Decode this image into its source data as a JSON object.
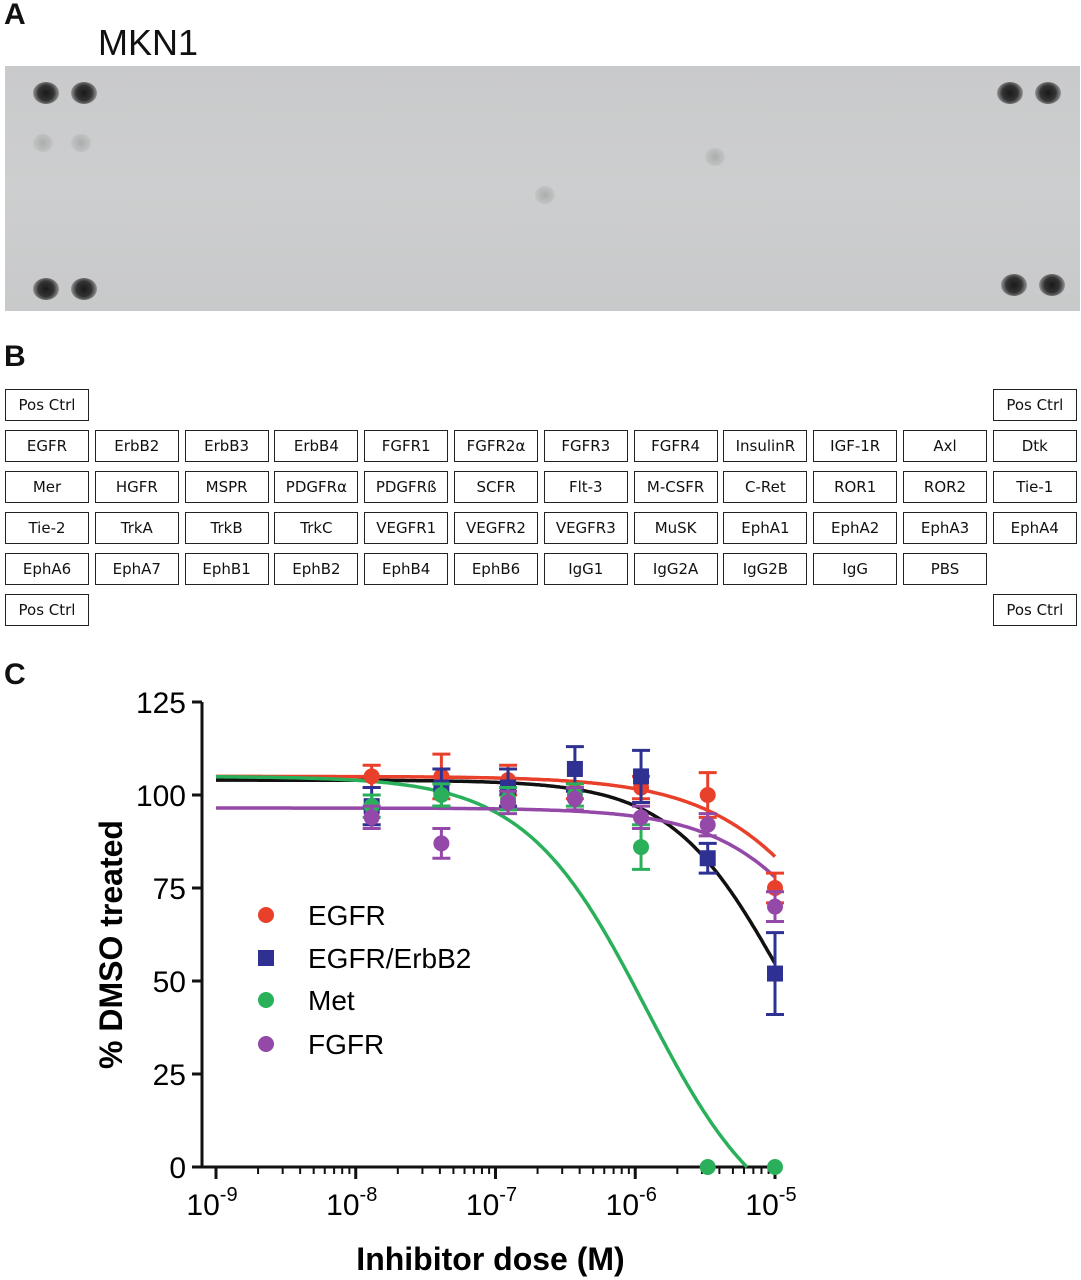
{
  "panels": {
    "a": {
      "letter": "A",
      "title": "MKN1"
    },
    "b": {
      "letter": "B"
    },
    "c": {
      "letter": "C"
    }
  },
  "array_layout": {
    "rows": [
      [
        "Pos Ctrl",
        "",
        "",
        "",
        "",
        "",
        "",
        "",
        "",
        "",
        "",
        "Pos Ctrl"
      ],
      [
        "EGFR",
        "ErbB2",
        "ErbB3",
        "ErbB4",
        "FGFR1",
        "FGFR2α",
        "FGFR3",
        "FGFR4",
        "InsulinR",
        "IGF-1R",
        "Axl",
        "Dtk"
      ],
      [
        "Mer",
        "HGFR",
        "MSPR",
        "PDGFRα",
        "PDGFRß",
        "SCFR",
        "Flt-3",
        "M-CSFR",
        "C-Ret",
        "ROR1",
        "ROR2",
        "Tie-1"
      ],
      [
        "Tie-2",
        "TrkA",
        "TrkB",
        "TrkC",
        "VEGFR1",
        "VEGFR2",
        "VEGFR3",
        "MuSK",
        "EphA1",
        "EphA2",
        "EphA3",
        "EphA4"
      ],
      [
        "EphA6",
        "EphA7",
        "EphB1",
        "EphB2",
        "EphB4",
        "EphB6",
        "IgG1",
        "IgG2A",
        "IgG2B",
        "IgG",
        "PBS",
        ""
      ],
      [
        "Pos Ctrl",
        "",
        "",
        "",
        "",
        "",
        "",
        "",
        "",
        "",
        "",
        "Pos Ctrl"
      ]
    ]
  },
  "chart_data": {
    "type": "scatter",
    "xlabel": "Inhibitor dose (M)",
    "ylabel": "% DMSO treated",
    "x_scale": "log",
    "xlim": [
      1e-09,
      1e-05
    ],
    "ylim": [
      0,
      125
    ],
    "x_ticks": [
      {
        "base": "10",
        "exp": "-9",
        "value": 1e-09
      },
      {
        "base": "10",
        "exp": "-8",
        "value": 1e-08
      },
      {
        "base": "10",
        "exp": "-7",
        "value": 1e-07
      },
      {
        "base": "10",
        "exp": "-6",
        "value": 1e-06
      },
      {
        "base": "10",
        "exp": "-5",
        "value": 1e-05
      }
    ],
    "y_ticks": [
      "0",
      "25",
      "50",
      "75",
      "100",
      "125"
    ],
    "legend_position": "lower-left",
    "series": [
      {
        "name": "EGFR",
        "color": "#e8402a",
        "marker": "circle",
        "x": [
          1.3e-08,
          4.1e-08,
          1.23e-07,
          3.7e-07,
          1.1e-06,
          3.3e-06,
          1e-05
        ],
        "y": [
          105,
          105,
          104,
          101,
          102,
          100,
          75
        ],
        "err": [
          3,
          6,
          4,
          2,
          3,
          6,
          4
        ],
        "fit": {
          "top": 105,
          "bottom": 0,
          "ic50": 4.5e-05,
          "hill": 0.9
        }
      },
      {
        "name": "EGFR/ErbB2",
        "color": "#2e3192",
        "marker": "square",
        "x": [
          1.3e-08,
          4.1e-08,
          1.23e-07,
          3.7e-07,
          1.1e-06,
          3.3e-06,
          1e-05
        ],
        "y": [
          97,
          102,
          102,
          107,
          105,
          83,
          52
        ],
        "err": [
          5,
          5,
          5,
          6,
          7,
          4,
          11
        ],
        "fit": {
          "top": 104,
          "bottom": 0,
          "ic50": 1.1e-05,
          "hill": 1.1
        }
      },
      {
        "name": "Met",
        "color": "#2ab05a",
        "marker": "circle",
        "x": [
          1.3e-08,
          4.1e-08,
          1.23e-07,
          3.7e-07,
          1.1e-06,
          3.3e-06,
          1e-05
        ],
        "y": [
          97,
          100,
          99,
          100,
          86,
          0,
          0
        ],
        "err": [
          3,
          3,
          3,
          3,
          6,
          0,
          0
        ],
        "fit": {
          "top": 105,
          "bottom": -20,
          "ic50": 1.2e-06,
          "hill": 1.0
        }
      },
      {
        "name": "FGFR",
        "color": "#9448a8",
        "marker": "circle",
        "x": [
          1.3e-08,
          4.1e-08,
          1.23e-07,
          3.7e-07,
          1.1e-06,
          3.3e-06,
          1e-05
        ],
        "y": [
          94,
          87,
          98,
          99,
          94,
          92,
          70
        ],
        "err": [
          3,
          4,
          3,
          3,
          3,
          3,
          4
        ],
        "fit": {
          "top": 96.5,
          "bottom": 0,
          "ic50": 4.2e-05,
          "hill": 1.0
        }
      }
    ]
  }
}
